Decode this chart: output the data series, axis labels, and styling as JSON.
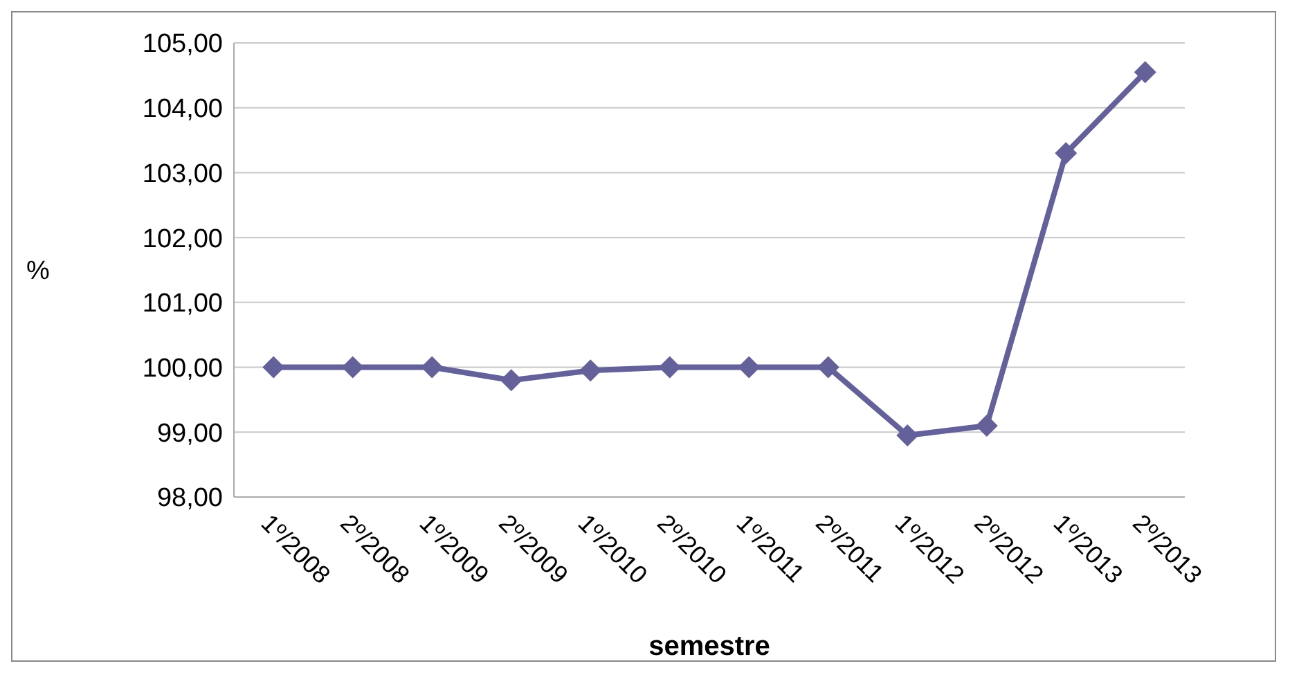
{
  "chart_data": {
    "type": "line",
    "xlabel": "semestre",
    "ylabel": "%",
    "categories": [
      "1º/2008",
      "2º/2008",
      "1º/2009",
      "2º/2009",
      "1º/2010",
      "2º/2010",
      "1º/2011",
      "2º/2011",
      "1º/2012",
      "2º/2012",
      "1º/2013",
      "2º/2013"
    ],
    "series": [
      {
        "color": "#64609a",
        "values": [
          100,
          100,
          100,
          99.8,
          99.95,
          100,
          100,
          100,
          98.95,
          99.1,
          103.3,
          104.55
        ]
      }
    ],
    "ylim": [
      98,
      105
    ],
    "yticks": [
      {
        "value": 98,
        "label": "98,00"
      },
      {
        "value": 99,
        "label": "99,00"
      },
      {
        "value": 100,
        "label": "100,00"
      },
      {
        "value": 101,
        "label": "101,00"
      },
      {
        "value": 102,
        "label": "102,00"
      },
      {
        "value": 103,
        "label": "103,00"
      },
      {
        "value": 104,
        "label": "104,00"
      },
      {
        "value": 105,
        "label": "105,00"
      }
    ],
    "grid": "y",
    "legend": false,
    "marker": "diamond",
    "line_style": "solid"
  }
}
